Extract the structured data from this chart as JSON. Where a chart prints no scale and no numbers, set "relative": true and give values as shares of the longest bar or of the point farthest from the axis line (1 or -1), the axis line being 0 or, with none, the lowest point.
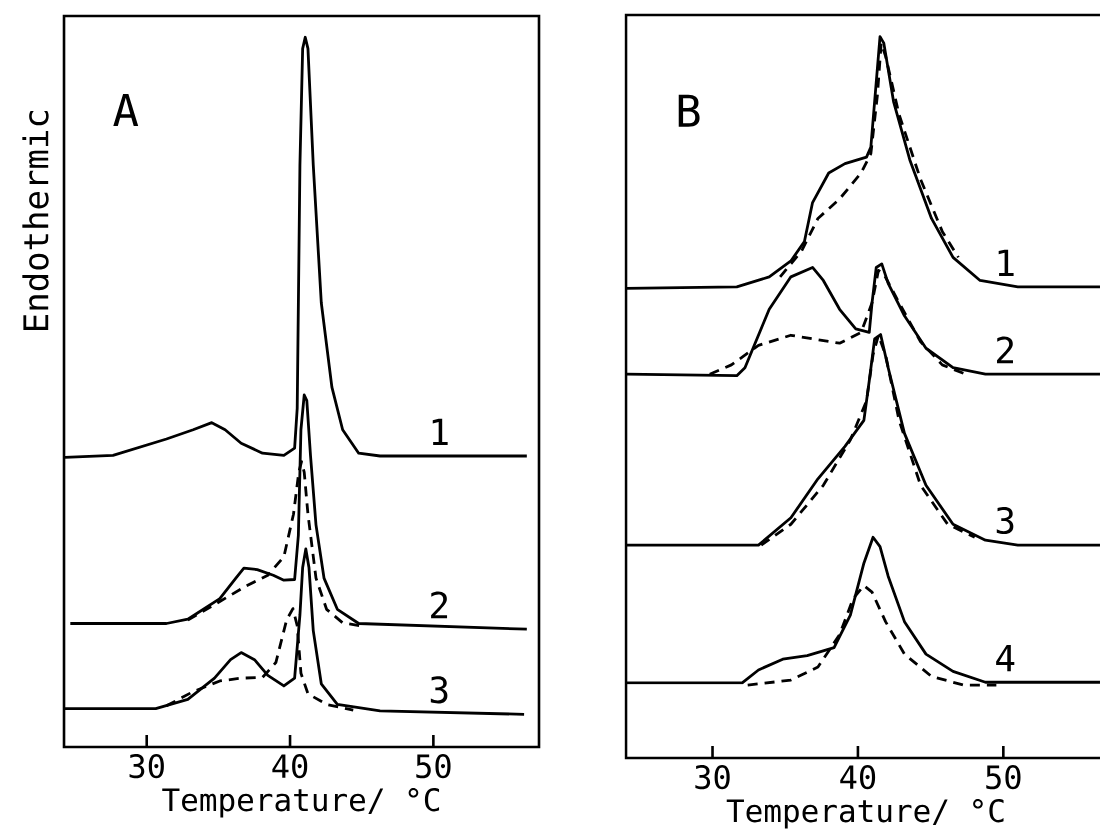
{
  "chart_data": [
    {
      "type": "line",
      "title": "A",
      "xlabel": "Temperature/ °C",
      "ylabel": "Endothermic",
      "relative": true,
      "xlim": [
        24.23,
        57.37
      ],
      "xticks": [
        30,
        40,
        50
      ],
      "series": [
        {
          "name": "1",
          "color": "#000000",
          "line_style": "solid",
          "x": [
            24.3,
            27.65,
            31.38,
            33.24,
            34.54,
            35.47,
            36.59,
            38.08,
            39.57,
            40.32,
            40.5,
            40.69,
            40.88,
            41.06,
            41.25,
            41.62,
            42.18,
            42.92,
            43.67,
            44.79,
            46.28,
            56.52
          ],
          "values": [
            0.408,
            0.411,
            0.434,
            0.447,
            0.457,
            0.447,
            0.428,
            0.414,
            0.411,
            0.421,
            0.477,
            0.82,
            0.984,
            1.0,
            0.984,
            0.82,
            0.626,
            0.507,
            0.447,
            0.414,
            0.41,
            0.41
          ]
        },
        {
          "name": "2",
          "color": "#000000",
          "line_style": "solid",
          "x": [
            24.67,
            31.38,
            32.87,
            35.1,
            36.22,
            36.78,
            37.71,
            38.83,
            39.57,
            40.32,
            40.58,
            40.76,
            40.99,
            41.17,
            41.43,
            41.81,
            42.37,
            43.3,
            44.79,
            56.52
          ],
          "values": [
            0.174,
            0.174,
            0.18,
            0.209,
            0.238,
            0.252,
            0.25,
            0.242,
            0.235,
            0.236,
            0.298,
            0.447,
            0.496,
            0.488,
            0.41,
            0.313,
            0.238,
            0.194,
            0.174,
            0.166
          ]
        },
        {
          "color": "#000000",
          "line_style": "dashed",
          "x": [
            32.87,
            35.1,
            36.96,
            38.45,
            39.57,
            40.24,
            40.61,
            40.8,
            40.99,
            41.25,
            41.81,
            42.55,
            43.67,
            45.16
          ],
          "values": [
            0.179,
            0.205,
            0.227,
            0.242,
            0.268,
            0.328,
            0.387,
            0.402,
            0.387,
            0.328,
            0.238,
            0.194,
            0.175,
            0.17
          ]
        },
        {
          "name": "3",
          "color": "#000000",
          "line_style": "solid",
          "x": [
            24.3,
            30.63,
            32.87,
            34.73,
            35.85,
            36.59,
            37.52,
            38.45,
            39.57,
            40.32,
            40.69,
            40.88,
            41.1,
            41.32,
            41.62,
            42.18,
            43.3,
            46.28,
            56.33
          ],
          "values": [
            0.054,
            0.054,
            0.067,
            0.097,
            0.123,
            0.133,
            0.123,
            0.101,
            0.086,
            0.097,
            0.186,
            0.253,
            0.279,
            0.253,
            0.164,
            0.089,
            0.06,
            0.051,
            0.046
          ]
        },
        {
          "color": "#000000",
          "line_style": "dashed",
          "x": [
            31.38,
            33.24,
            35.1,
            36.59,
            38.08,
            39.01,
            39.76,
            40.2,
            40.5,
            40.76,
            41.25,
            42.55,
            44.41
          ],
          "values": [
            0.058,
            0.078,
            0.093,
            0.097,
            0.098,
            0.119,
            0.179,
            0.195,
            0.171,
            0.104,
            0.075,
            0.06,
            0.052
          ]
        }
      ]
    },
    {
      "type": "line",
      "title": "B",
      "xlabel": "Temperature/ °C",
      "relative": true,
      "xlim": [
        24.05,
        57.06
      ],
      "xticks": [
        30,
        40,
        50
      ],
      "series": [
        {
          "name": "1",
          "color": "#000000",
          "line_style": "solid",
          "x": [
            24.05,
            31.67,
            33.9,
            35.39,
            36.32,
            36.88,
            37.99,
            39.11,
            40.59,
            40.89,
            41.26,
            41.52,
            41.78,
            42.45,
            43.57,
            45.06,
            46.54,
            48.4,
            51.0,
            57.06
          ],
          "values": [
            0.651,
            0.653,
            0.667,
            0.689,
            0.716,
            0.77,
            0.811,
            0.824,
            0.833,
            0.847,
            0.937,
            1.0,
            0.991,
            0.91,
            0.829,
            0.748,
            0.694,
            0.662,
            0.653,
            0.653
          ]
        },
        {
          "color": "#000000",
          "line_style": "dashed",
          "x": [
            34.65,
            36.13,
            37.25,
            38.74,
            40.22,
            40.89,
            41.34,
            41.6,
            41.9,
            42.83,
            44.31,
            45.8,
            46.91
          ],
          "values": [
            0.667,
            0.703,
            0.748,
            0.775,
            0.811,
            0.838,
            0.919,
            0.991,
            0.973,
            0.892,
            0.802,
            0.73,
            0.694
          ]
        },
        {
          "name": "2",
          "color": "#000000",
          "line_style": "solid",
          "x": [
            24.05,
            31.67,
            32.23,
            33.9,
            35.39,
            36.88,
            37.62,
            38.74,
            39.85,
            40.78,
            40.97,
            41.26,
            41.64,
            42.08,
            43.2,
            44.68,
            46.54,
            48.77,
            57.06
          ],
          "values": [
            0.532,
            0.53,
            0.541,
            0.622,
            0.667,
            0.68,
            0.662,
            0.622,
            0.595,
            0.59,
            0.631,
            0.68,
            0.685,
            0.658,
            0.613,
            0.568,
            0.541,
            0.532,
            0.532
          ]
        },
        {
          "color": "#000000",
          "line_style": "dashed",
          "x": [
            29.81,
            31.3,
            33.16,
            35.39,
            36.88,
            38.74,
            40.22,
            40.97,
            41.41,
            41.78,
            42.83,
            44.31,
            45.8,
            47.29
          ],
          "values": [
            0.532,
            0.545,
            0.572,
            0.586,
            0.581,
            0.575,
            0.59,
            0.631,
            0.676,
            0.671,
            0.631,
            0.577,
            0.545,
            0.533
          ]
        },
        {
          "name": "3",
          "color": "#000000",
          "line_style": "solid",
          "x": [
            24.05,
            33.16,
            35.39,
            37.25,
            39.11,
            40.41,
            40.78,
            41.15,
            41.56,
            42.08,
            43.2,
            44.68,
            46.54,
            48.77,
            51.0,
            57.06
          ],
          "values": [
            0.295,
            0.295,
            0.333,
            0.387,
            0.432,
            0.468,
            0.523,
            0.581,
            0.587,
            0.541,
            0.45,
            0.378,
            0.324,
            0.302,
            0.295,
            0.295
          ]
        },
        {
          "color": "#000000",
          "line_style": "dashed",
          "x": [
            33.35,
            35.39,
            37.62,
            39.48,
            40.59,
            41.04,
            41.41,
            41.9,
            42.83,
            44.31,
            46.17,
            48.03
          ],
          "values": [
            0.295,
            0.324,
            0.378,
            0.441,
            0.495,
            0.559,
            0.586,
            0.559,
            0.468,
            0.378,
            0.324,
            0.306
          ]
        },
        {
          "name": "4",
          "color": "#000000",
          "line_style": "solid",
          "x": [
            24.05,
            32.04,
            33.16,
            34.83,
            36.51,
            38.36,
            39.48,
            40.41,
            41.04,
            41.52,
            42.08,
            43.2,
            44.68,
            46.54,
            48.77,
            57.06
          ],
          "values": [
            0.104,
            0.104,
            0.122,
            0.137,
            0.142,
            0.153,
            0.198,
            0.27,
            0.306,
            0.293,
            0.252,
            0.189,
            0.144,
            0.12,
            0.105,
            0.105
          ]
        },
        {
          "color": "#000000",
          "line_style": "dashed",
          "x": [
            32.42,
            35.39,
            37.25,
            38.74,
            39.67,
            40.41,
            40.97,
            41.9,
            43.2,
            45.06,
            47.29,
            49.52
          ],
          "values": [
            0.101,
            0.108,
            0.126,
            0.171,
            0.221,
            0.239,
            0.23,
            0.189,
            0.144,
            0.113,
            0.101,
            0.101
          ]
        }
      ]
    }
  ]
}
